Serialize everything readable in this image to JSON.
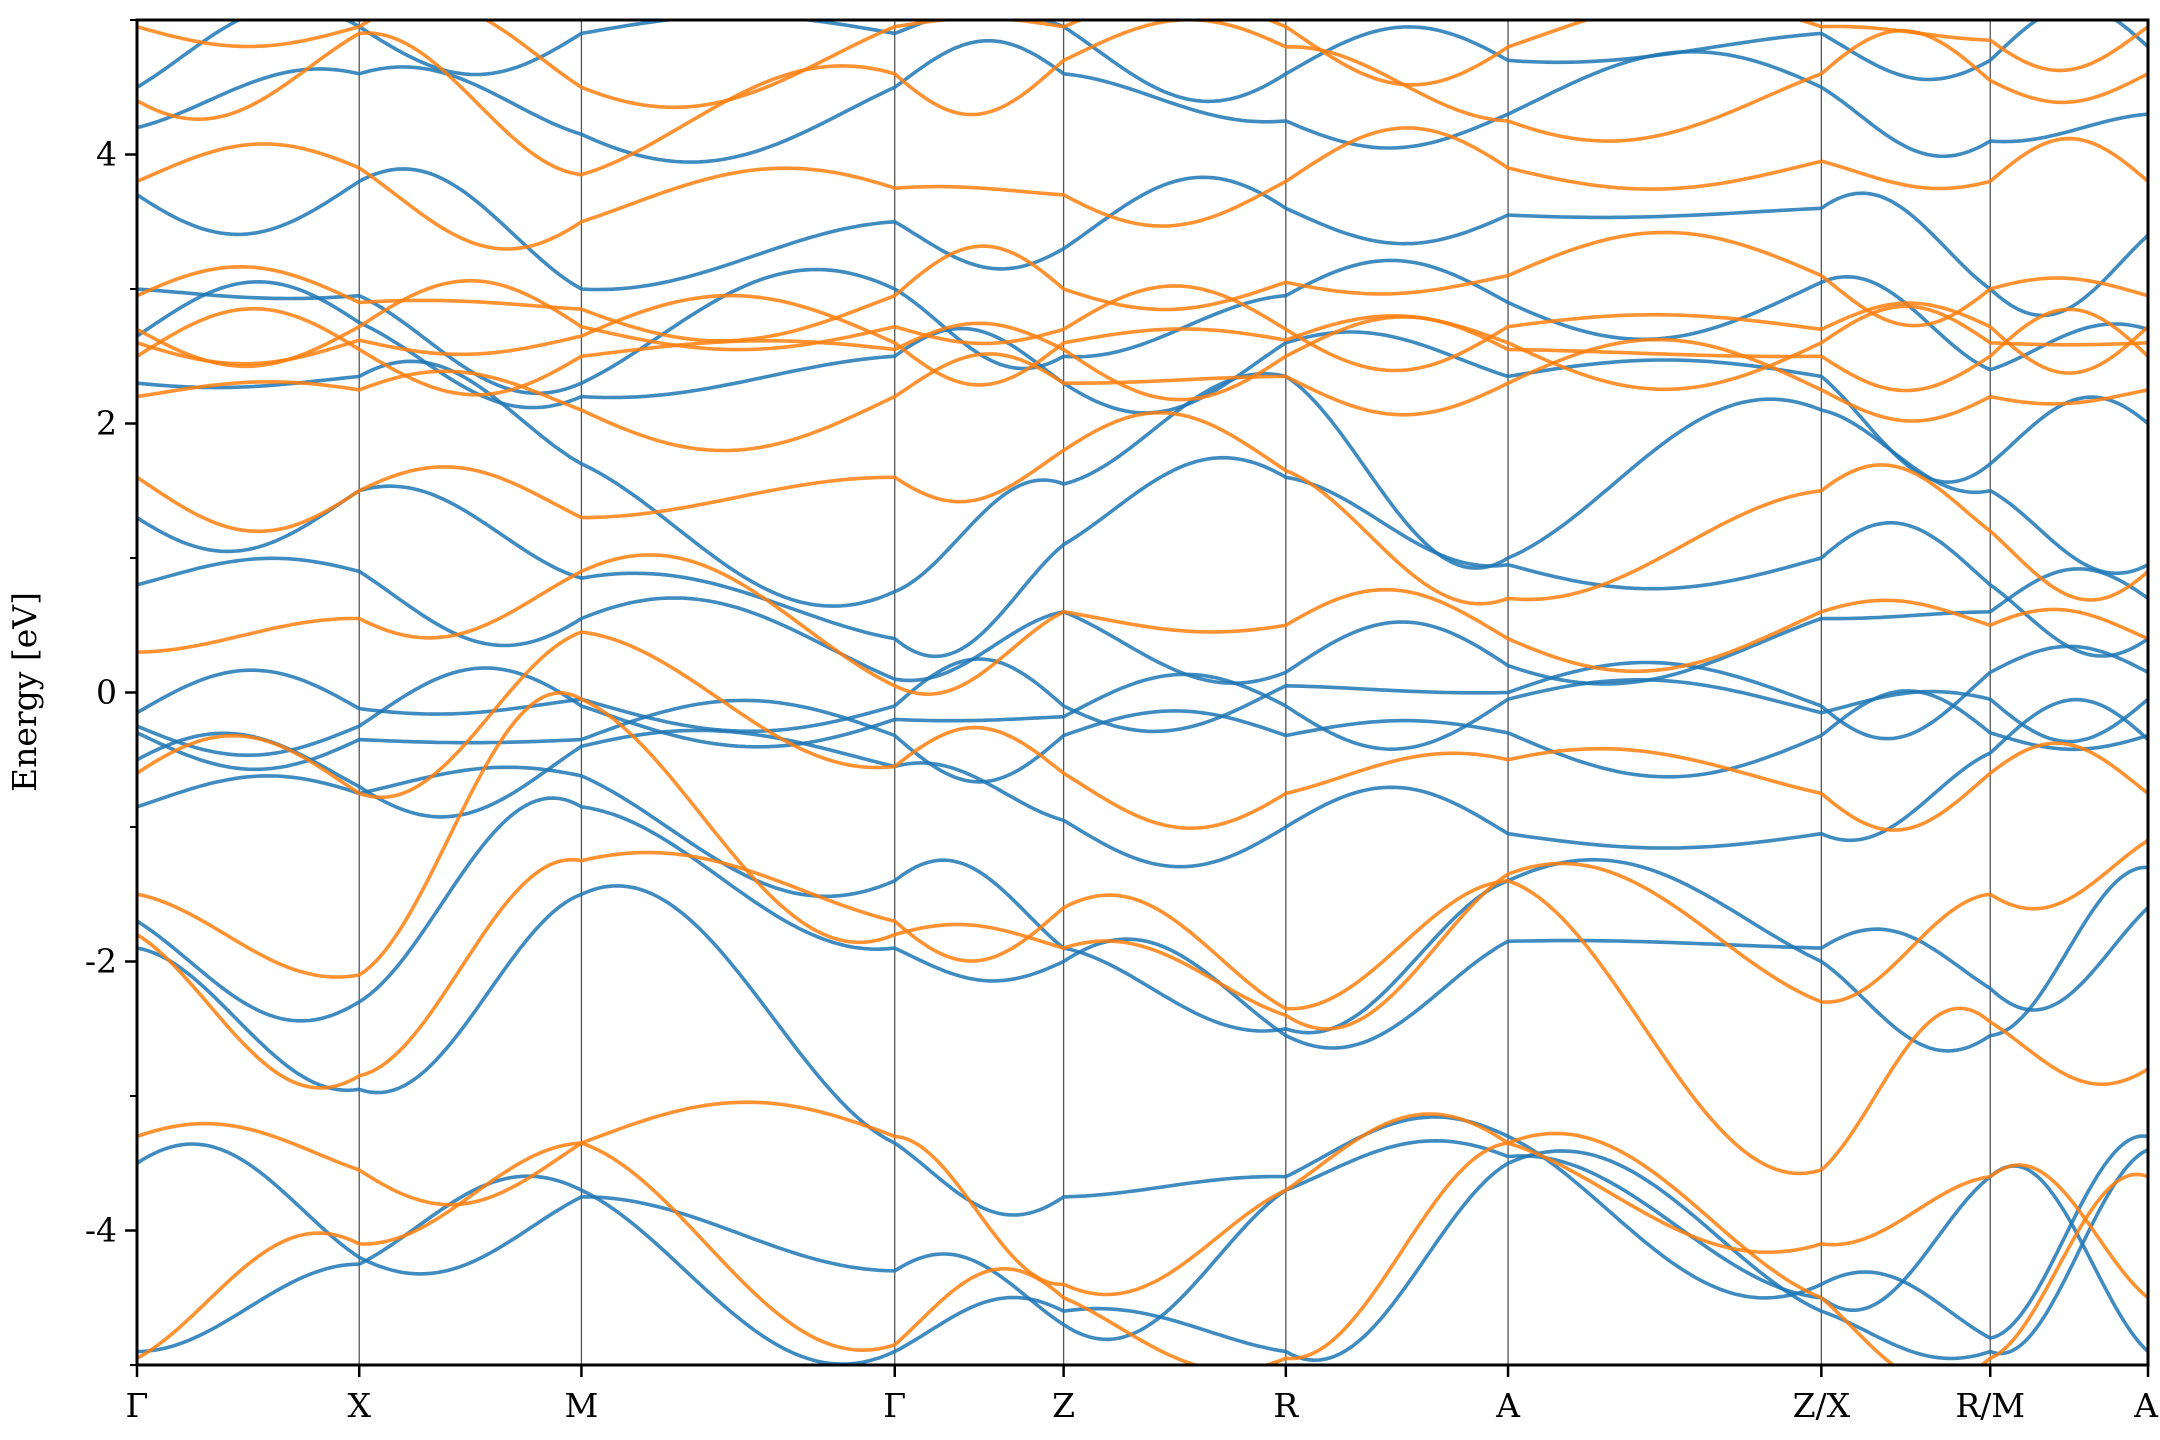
{
  "chart_data": {
    "type": "line",
    "xlabel": "",
    "ylabel": "Energy [eV]",
    "ylim": [
      -5,
      5
    ],
    "y_ticks": [
      4,
      2,
      0,
      -2,
      -4
    ],
    "y_tick_labels": [
      "4",
      "2",
      "0",
      "-2",
      "-4"
    ],
    "y_minor_ticks": [
      5,
      3,
      1,
      -1,
      -3,
      -5
    ],
    "grid": "vertical lines at high-symmetry points",
    "kpath": {
      "labels": [
        "Γ",
        "X",
        "M",
        "Γ",
        "Z",
        "R",
        "A",
        "Z/X",
        "R/M",
        "A"
      ],
      "positions": [
        0.0,
        1.0,
        2.0,
        3.41,
        4.17,
        5.17,
        6.17,
        7.58,
        8.34,
        9.05
      ],
      "segment_breaks": [
        7.58,
        8.34
      ]
    },
    "colors": {
      "spin_up": "#1f77b4",
      "spin_down": "#ff7f0e"
    },
    "series": [
      {
        "color": "#1f77b4",
        "bands": [
          [
            -4.9,
            -4.25,
            -3.7,
            -4.9,
            -4.6,
            -4.9,
            -3.5,
            -4.6,
            -4.9,
            -3.4
          ],
          [
            -3.5,
            -4.2,
            -3.75,
            -4.3,
            -4.7,
            -3.7,
            -3.45,
            -4.5,
            -3.6,
            -4.9
          ],
          [
            -1.9,
            -2.95,
            -1.5,
            -3.35,
            -3.75,
            -3.6,
            -3.3,
            -4.4,
            -4.8,
            -3.3
          ],
          [
            -1.7,
            -2.3,
            -0.85,
            -1.9,
            -2.0,
            -2.55,
            -1.85,
            -1.9,
            -2.2,
            -1.6
          ],
          [
            -0.85,
            -0.75,
            -0.62,
            -1.4,
            -1.9,
            -2.5,
            -1.4,
            -2.0,
            -2.55,
            -1.3
          ],
          [
            -0.5,
            -0.7,
            -0.4,
            -0.55,
            -0.95,
            -1.0,
            -1.05,
            -1.05,
            -0.45,
            -0.35
          ],
          [
            -0.3,
            -0.35,
            -0.35,
            -0.32,
            -0.32,
            -0.32,
            -0.3,
            -0.32,
            -0.3,
            -0.32
          ],
          [
            -0.25,
            -0.25,
            -0.1,
            -0.2,
            -0.18,
            -0.1,
            -0.05,
            -0.15,
            -0.05,
            -0.05
          ],
          [
            -0.15,
            -0.12,
            -0.05,
            -0.1,
            -0.1,
            0.05,
            0.0,
            -0.1,
            0.15,
            0.15
          ],
          [
            0.8,
            0.9,
            0.55,
            0.1,
            0.6,
            0.15,
            0.2,
            0.55,
            0.6,
            0.7
          ],
          [
            1.3,
            1.5,
            0.85,
            0.4,
            1.1,
            1.6,
            0.95,
            1.0,
            0.8,
            0.4
          ],
          [
            2.3,
            2.35,
            1.7,
            0.75,
            1.55,
            2.35,
            1.0,
            2.1,
            1.5,
            0.95
          ],
          [
            2.65,
            2.75,
            2.2,
            2.5,
            2.3,
            2.6,
            2.35,
            2.35,
            1.7,
            2.0
          ],
          [
            3.0,
            2.95,
            2.3,
            3.0,
            2.5,
            2.95,
            2.9,
            3.05,
            2.4,
            2.7
          ],
          [
            3.7,
            3.8,
            3.0,
            3.5,
            3.3,
            3.6,
            3.55,
            3.6,
            3.0,
            3.4
          ],
          [
            4.2,
            4.6,
            4.15,
            4.5,
            4.6,
            4.25,
            4.3,
            4.5,
            4.1,
            4.3
          ],
          [
            4.5,
            4.95,
            4.9,
            4.9,
            4.95,
            4.6,
            4.7,
            4.9,
            4.7,
            4.8
          ]
        ]
      },
      {
        "color": "#ff7f0e",
        "bands": [
          [
            -4.95,
            -4.1,
            -3.35,
            -4.85,
            -4.5,
            -4.95,
            -3.35,
            -4.5,
            -4.95,
            -3.6
          ],
          [
            -3.3,
            -3.55,
            -3.35,
            -3.3,
            -4.4,
            -3.7,
            -3.35,
            -4.1,
            -3.6,
            -4.5
          ],
          [
            -1.8,
            -2.85,
            -1.25,
            -1.7,
            -1.6,
            -2.35,
            -1.4,
            -3.55,
            -2.45,
            -2.8
          ],
          [
            -1.5,
            -2.1,
            -0.05,
            -1.8,
            -1.9,
            -2.4,
            -1.35,
            -2.3,
            -1.5,
            -1.1
          ],
          [
            -0.6,
            -0.75,
            0.45,
            -0.55,
            -0.6,
            -0.75,
            -0.5,
            -0.75,
            -0.6,
            -0.75
          ],
          [
            0.3,
            0.55,
            0.9,
            0.05,
            0.6,
            0.5,
            0.4,
            0.6,
            0.5,
            0.4
          ],
          [
            1.6,
            1.5,
            1.3,
            1.6,
            1.8,
            1.65,
            0.7,
            1.5,
            1.2,
            0.9
          ],
          [
            2.2,
            2.25,
            2.1,
            2.2,
            2.3,
            2.35,
            2.3,
            2.25,
            2.2,
            2.25
          ],
          [
            2.5,
            2.55,
            2.5,
            2.55,
            2.55,
            2.5,
            2.55,
            2.5,
            2.5,
            2.5
          ],
          [
            2.6,
            2.62,
            2.65,
            2.6,
            2.6,
            2.62,
            2.6,
            2.6,
            2.6,
            2.6
          ],
          [
            2.7,
            2.72,
            2.72,
            2.72,
            2.7,
            2.7,
            2.72,
            2.7,
            2.72,
            2.72
          ],
          [
            2.95,
            2.9,
            2.85,
            2.95,
            3.0,
            3.05,
            3.1,
            3.1,
            3.0,
            2.95
          ],
          [
            3.8,
            3.9,
            3.5,
            3.75,
            3.7,
            3.8,
            3.9,
            3.95,
            3.8,
            3.8
          ],
          [
            4.4,
            4.9,
            3.85,
            4.6,
            4.7,
            4.8,
            4.25,
            4.6,
            4.55,
            4.6
          ],
          [
            4.95,
            4.95,
            4.5,
            4.95,
            4.95,
            4.95,
            4.8,
            4.95,
            4.85,
            4.95
          ]
        ]
      }
    ]
  }
}
